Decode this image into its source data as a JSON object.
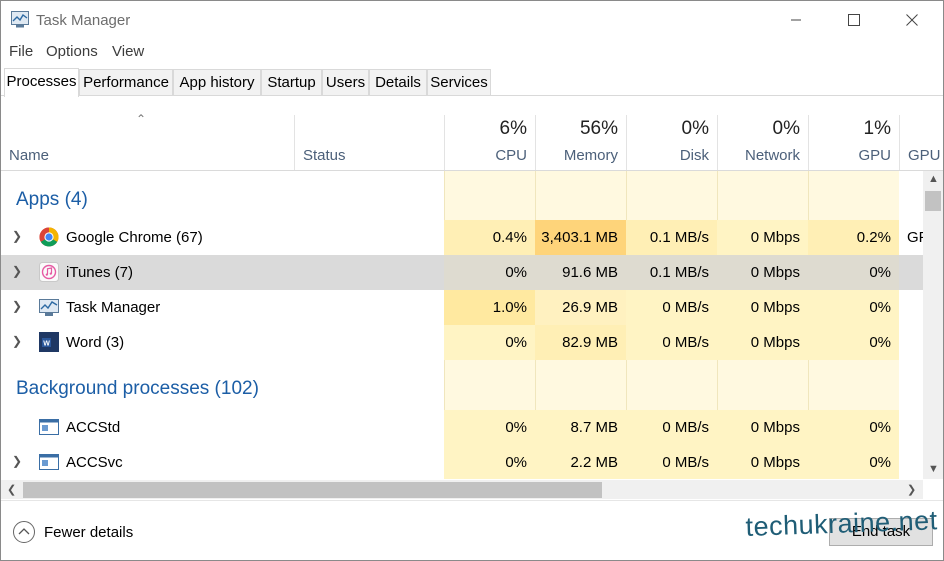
{
  "window": {
    "title": "Task Manager"
  },
  "menu": [
    "File",
    "Options",
    "View"
  ],
  "tabs": [
    "Processes",
    "Performance",
    "App history",
    "Startup",
    "Users",
    "Details",
    "Services"
  ],
  "columns": {
    "name": "Name",
    "status": "Status",
    "cpu": {
      "pct": "6%",
      "label": "CPU"
    },
    "memory": {
      "pct": "56%",
      "label": "Memory"
    },
    "disk": {
      "pct": "0%",
      "label": "Disk"
    },
    "network": {
      "pct": "0%",
      "label": "Network"
    },
    "gpu": {
      "pct": "1%",
      "label": "GPU"
    },
    "gpu_engine": "GPU e"
  },
  "groups": {
    "apps": "Apps (4)",
    "background": "Background processes (102)"
  },
  "rows": {
    "chrome": {
      "name": "Google Chrome (67)",
      "cpu": "0.4%",
      "memory": "3,403.1 MB",
      "disk": "0.1 MB/s",
      "network": "0 Mbps",
      "gpu": "0.2%",
      "gpu_engine": "GP"
    },
    "itunes": {
      "name": "iTunes (7)",
      "cpu": "0%",
      "memory": "91.6 MB",
      "disk": "0.1 MB/s",
      "network": "0 Mbps",
      "gpu": "0%"
    },
    "taskmgr": {
      "name": "Task Manager",
      "cpu": "1.0%",
      "memory": "26.9 MB",
      "disk": "0 MB/s",
      "network": "0 Mbps",
      "gpu": "0%"
    },
    "word": {
      "name": "Word (3)",
      "cpu": "0%",
      "memory": "82.9 MB",
      "disk": "0 MB/s",
      "network": "0 Mbps",
      "gpu": "0%"
    },
    "accstd": {
      "name": "ACCStd",
      "cpu": "0%",
      "memory": "8.7 MB",
      "disk": "0 MB/s",
      "network": "0 Mbps",
      "gpu": "0%"
    },
    "accsvc": {
      "name": "ACCSvc",
      "cpu": "0%",
      "memory": "2.2 MB",
      "disk": "0 MB/s",
      "network": "0 Mbps",
      "gpu": "0%"
    }
  },
  "footer": {
    "fewer_details": "Fewer details",
    "end_task": "End task"
  },
  "watermark": "techukraine.net",
  "colors": {
    "heat_light": "#fff4c4",
    "heat_mid": "#ffeaa6",
    "heat_high": "#fed47a",
    "group_blue": "#1c5ea6",
    "selected_row": "#dadada"
  }
}
